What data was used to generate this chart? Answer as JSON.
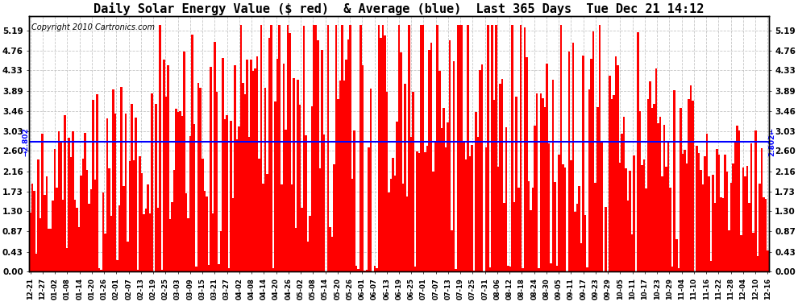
{
  "title": "Daily Solar Energy Value ($ red)  & Average (blue)  Last 365 Days  Tue Dec 21 14:12",
  "copyright": "Copyright 2010 Cartronics.com",
  "average_value": 2.802,
  "yticks": [
    0.0,
    0.43,
    0.87,
    1.3,
    1.73,
    2.16,
    2.6,
    3.03,
    3.46,
    3.89,
    4.33,
    4.76,
    5.19
  ],
  "ymax": 5.5,
  "bar_color": "#ff0000",
  "avg_line_color": "#0000ff",
  "background_color": "#ffffff",
  "grid_color": "#c0c0c0",
  "title_fontsize": 11,
  "copyright_fontsize": 7,
  "x_labels": [
    "12-21",
    "12-27",
    "01-02",
    "01-08",
    "01-14",
    "01-20",
    "01-26",
    "02-01",
    "02-07",
    "02-13",
    "02-19",
    "02-25",
    "03-03",
    "03-09",
    "03-15",
    "03-21",
    "03-27",
    "04-02",
    "04-08",
    "04-14",
    "04-20",
    "04-26",
    "05-02",
    "05-08",
    "05-14",
    "05-20",
    "05-26",
    "06-01",
    "06-07",
    "06-13",
    "06-19",
    "06-25",
    "07-01",
    "07-07",
    "07-13",
    "07-19",
    "07-25",
    "07-31",
    "08-06",
    "08-12",
    "08-18",
    "08-24",
    "08-30",
    "09-05",
    "09-11",
    "09-17",
    "09-23",
    "09-29",
    "10-05",
    "10-11",
    "10-17",
    "10-23",
    "10-29",
    "11-04",
    "11-10",
    "11-16",
    "11-22",
    "11-28",
    "12-04",
    "12-10",
    "12-16"
  ],
  "n_days": 365,
  "avg_label_left": "→2.802",
  "avg_label_right": "2.802←"
}
